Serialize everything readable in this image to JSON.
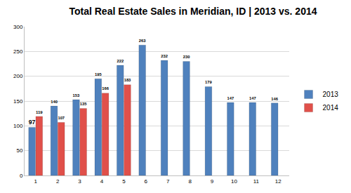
{
  "chart_data": {
    "type": "bar",
    "title": "Total Real Estate Sales in Meridian, ID | 2013 vs. 2014",
    "categories": [
      "1",
      "2",
      "3",
      "4",
      "5",
      "6",
      "7",
      "8",
      "9",
      "10",
      "11",
      "12"
    ],
    "series": [
      {
        "name": "2013",
        "color": "#4f81bd",
        "values": [
          97,
          140,
          153,
          195,
          222,
          263,
          232,
          230,
          179,
          147,
          147,
          146
        ]
      },
      {
        "name": "2014",
        "color": "#e0504a",
        "values": [
          119,
          107,
          135,
          166,
          183,
          null,
          null,
          null,
          null,
          null,
          null,
          null
        ]
      }
    ],
    "ylim": [
      0,
      300
    ],
    "yticks": [
      0,
      50,
      100,
      150,
      200,
      250,
      300
    ],
    "grid": true,
    "legend": "right",
    "data_labels": true
  }
}
